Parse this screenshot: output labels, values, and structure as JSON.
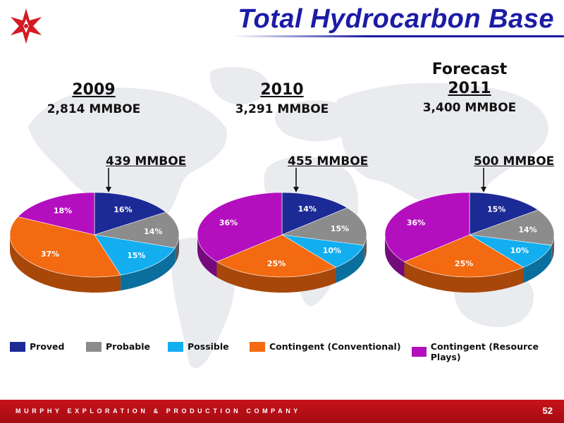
{
  "header": {
    "title": "Total Hydrocarbon Base",
    "logo": "star-logo-icon",
    "brand_color": "#1c1ca6"
  },
  "footer": {
    "company": "MURPHY EXPLORATION & PRODUCTION COMPANY",
    "page": "52",
    "bar_color": "#b50f18"
  },
  "colors": {
    "Proved": "#1c2a96",
    "Probable": "#8c8c8c",
    "Possible": "#12aef0",
    "Contingent (Conventional)": "#f36a10",
    "Contingent (Resource Plays)": "#b40fbf"
  },
  "legend": [
    "Proved",
    "Probable",
    "Possible",
    "Contingent (Conventional)",
    "Contingent (Resource Plays)"
  ],
  "chart_data": [
    {
      "type": "pie",
      "pre": "",
      "year": "2009",
      "total": "2,814 MMBOE",
      "proved_label": "439 MMBOE",
      "categories": [
        "Proved",
        "Probable",
        "Possible",
        "Contingent (Conventional)",
        "Contingent (Resource Plays)"
      ],
      "values": [
        16,
        14,
        15,
        37,
        18
      ],
      "labels": [
        "16%",
        "14%",
        "15%",
        "37%",
        "18%"
      ]
    },
    {
      "type": "pie",
      "pre": "",
      "year": "2010",
      "total": "3,291 MMBOE",
      "proved_label": "455 MMBOE",
      "categories": [
        "Proved",
        "Probable",
        "Possible",
        "Contingent (Conventional)",
        "Contingent (Resource Plays)"
      ],
      "values": [
        14,
        15,
        10,
        25,
        36
      ],
      "labels": [
        "14%",
        "15%",
        "10%",
        "25%",
        "36%"
      ]
    },
    {
      "type": "pie",
      "pre": "Forecast",
      "year": "2011",
      "total": "3,400 MMBOE",
      "proved_label": "500 MMBOE",
      "categories": [
        "Proved",
        "Probable",
        "Possible",
        "Contingent (Conventional)",
        "Contingent (Resource Plays)"
      ],
      "values": [
        15,
        14,
        10,
        25,
        36
      ],
      "labels": [
        "15%",
        "14%",
        "10%",
        "25%",
        "36%"
      ]
    }
  ]
}
